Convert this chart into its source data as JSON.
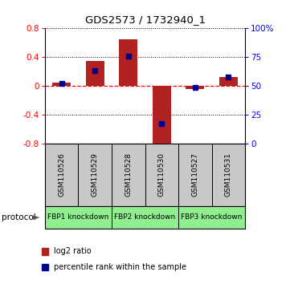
{
  "title": "GDS2573 / 1732940_1",
  "samples": [
    "GSM110526",
    "GSM110529",
    "GSM110528",
    "GSM110530",
    "GSM110527",
    "GSM110531"
  ],
  "log2_ratio": [
    0.05,
    0.35,
    0.65,
    -0.88,
    -0.04,
    0.12
  ],
  "percentile_rank": [
    52,
    63,
    76,
    17,
    49,
    58
  ],
  "proto_groups": [
    {
      "start": 0,
      "end": 1,
      "label": "FBP1 knockdown"
    },
    {
      "start": 2,
      "end": 3,
      "label": "FBP2 knockdown"
    },
    {
      "start": 4,
      "end": 5,
      "label": "FBP3 knockdown"
    }
  ],
  "ylim_left": [
    -0.8,
    0.8
  ],
  "ylim_right": [
    0,
    100
  ],
  "yticks_left": [
    -0.8,
    -0.4,
    0.0,
    0.4,
    0.8
  ],
  "yticks_right": [
    0,
    25,
    50,
    75,
    100
  ],
  "bar_color": "#B22222",
  "dot_color": "#00008B",
  "sample_bg": "#c8c8c8",
  "proto_bg": "#90EE90",
  "legend_red_label": "log2 ratio",
  "legend_blue_label": "percentile rank within the sample"
}
